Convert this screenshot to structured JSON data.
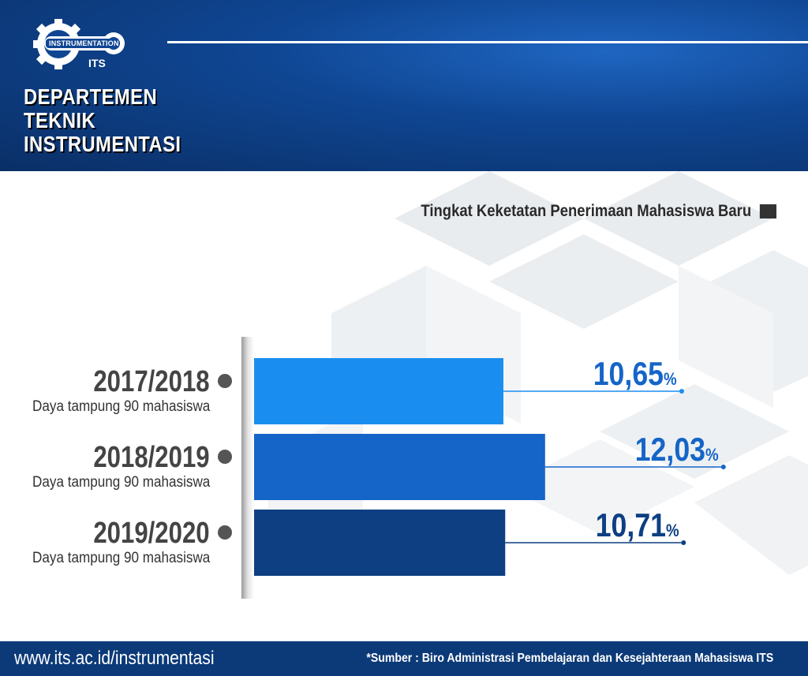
{
  "header": {
    "logo_text_top": "INSTRUMENTATION",
    "logo_text_bottom": "ITS",
    "dept_line1": "DEPARTEMEN",
    "dept_line2": "TEKNIK",
    "dept_line3": "INSTRUMENTASI"
  },
  "colors": {
    "header_blue": "#0f4693",
    "bar_2017": "#1a8ef0",
    "bar_2018": "#1565c8",
    "bar_2019": "#0d3f82",
    "value_text": "#1565c8",
    "footer_blue": "#0c3a78"
  },
  "chart_data": {
    "type": "bar",
    "orientation": "horizontal",
    "title": "Tingkat Keketatan Penerimaan Mahasiswa Baru",
    "categories": [
      "2017/2018",
      "2018/2019",
      "2019/2020"
    ],
    "category_sublabels": [
      "Daya tampung 90 mahasiswa",
      "Daya tampung 90 mahasiswa",
      "Daya tampung 90 mahasiswa"
    ],
    "values": [
      10.65,
      12.03,
      10.71
    ],
    "value_labels": [
      "10,65",
      "12,03",
      "10,71"
    ],
    "value_unit": "%",
    "grid": false
  },
  "footer": {
    "url": "www.its.ac.id/instrumentasi",
    "source": "*Sumber : Biro Administrasi Pembelajaran dan Kesejahteraan Mahasiswa ITS"
  }
}
